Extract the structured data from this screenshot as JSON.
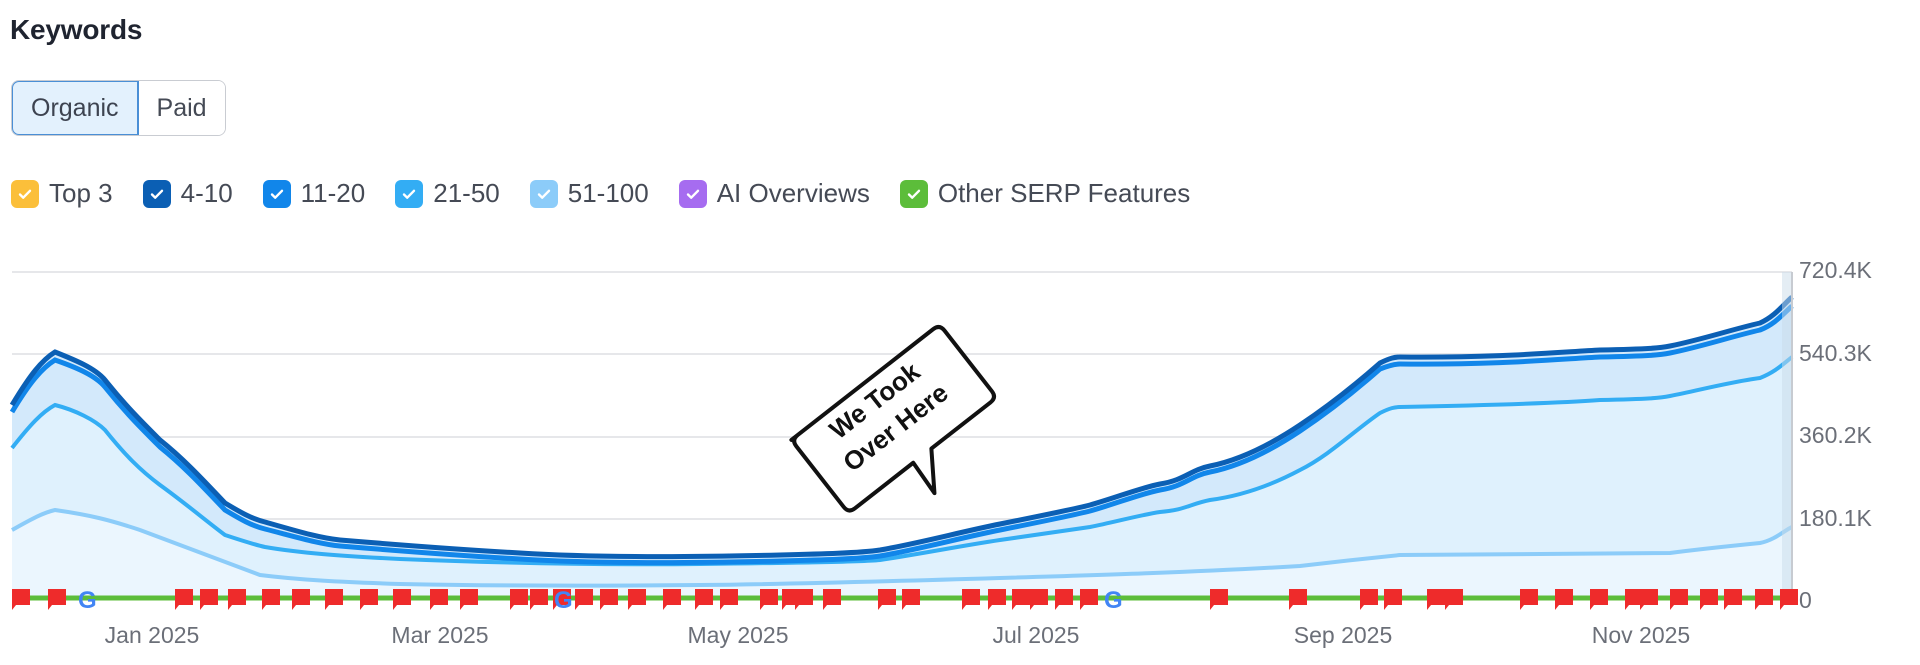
{
  "header": {
    "title": "Keywords"
  },
  "toggle": {
    "options": [
      {
        "label": "Organic",
        "active": true
      },
      {
        "label": "Paid",
        "active": false
      }
    ]
  },
  "legend": {
    "items": [
      {
        "label": "Top 3",
        "color": "#fbbf3a",
        "checked": true
      },
      {
        "label": "4-10",
        "color": "#0b5fb4",
        "checked": true
      },
      {
        "label": "11-20",
        "color": "#1186ea",
        "checked": true
      },
      {
        "label": "21-50",
        "color": "#33adf4",
        "checked": true
      },
      {
        "label": "51-100",
        "color": "#8cccf9",
        "checked": true
      },
      {
        "label": "AI Overviews",
        "color": "#a66cf0",
        "checked": true
      },
      {
        "label": "Other SERP Features",
        "color": "#5cbd3a",
        "checked": true
      }
    ]
  },
  "annotation": {
    "line1": "We Took",
    "line2": "Over Here"
  },
  "chart_data": {
    "type": "area",
    "title": "Keywords",
    "xlabel": "",
    "ylabel": "",
    "ylim": [
      0,
      720400
    ],
    "y_ticks": [
      "0",
      "180.1K",
      "360.2K",
      "540.3K",
      "720.4K"
    ],
    "x_ticks": [
      "Jan 2025",
      "Mar 2025",
      "May 2025",
      "Jul 2025",
      "Sep 2025",
      "Nov 2025"
    ],
    "grid": true,
    "legend_position": "top",
    "x": [
      "Dec 2024",
      "Jan 2025",
      "Feb 2025",
      "Mar 2025",
      "Apr 2025",
      "May 2025",
      "Jun 2025",
      "Jul 2025",
      "Aug 2025",
      "Sep 2025",
      "Oct 2025",
      "Nov 2025",
      "Dec 2025"
    ],
    "series": [
      {
        "name": "Top 3",
        "values": [
          8000,
          8000,
          8000,
          8000,
          8000,
          8000,
          8000,
          9000,
          9000,
          9000,
          9000,
          9000,
          9000
        ]
      },
      {
        "name": "4-10",
        "values": [
          430000,
          510000,
          220000,
          128000,
          113000,
          108000,
          118000,
          190000,
          260000,
          420000,
          528000,
          538000,
          660000
        ]
      },
      {
        "name": "11-20",
        "values": [
          410000,
          495000,
          208000,
          116000,
          100000,
          96000,
          106000,
          178000,
          245000,
          405000,
          515000,
          525000,
          625000
        ]
      },
      {
        "name": "21-50",
        "values": [
          340000,
          430000,
          175000,
          100000,
          86000,
          82000,
          90000,
          150000,
          205000,
          330000,
          425000,
          435000,
          545000
        ]
      },
      {
        "name": "51-100",
        "values": [
          155000,
          200000,
          92000,
          38000,
          34000,
          34000,
          36000,
          52000,
          64000,
          86000,
          110000,
          112000,
          160000
        ]
      },
      {
        "name": "AI Overviews",
        "values": [
          0,
          0,
          0,
          0,
          0,
          0,
          0,
          0,
          0,
          0,
          0,
          0,
          0
        ]
      },
      {
        "name": "Other SERP Features",
        "values": [
          6000,
          6000,
          6000,
          6000,
          6000,
          6000,
          6000,
          7000,
          7000,
          7000,
          7000,
          7000,
          7000
        ]
      }
    ],
    "annotations": [
      {
        "text": "We Took Over Here",
        "x": "Jun 2025"
      }
    ],
    "event_markers": "Red flag markers and Google update icons along the baseline"
  }
}
